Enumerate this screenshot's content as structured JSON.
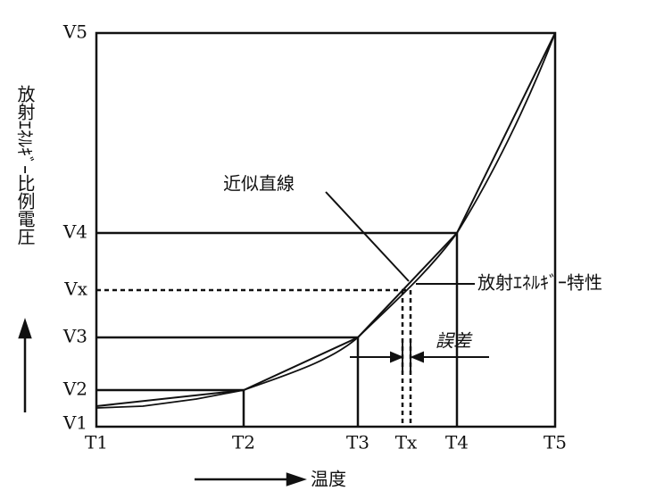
{
  "y_axis": {
    "title": "放射ｴﾈﾙｷﾞｰ比例電圧",
    "labels": [
      "V5",
      "V4",
      "Vx",
      "V3",
      "V2",
      "V1"
    ]
  },
  "x_axis": {
    "title": "温度",
    "labels": [
      "T1",
      "T2",
      "T3",
      "Tx",
      "T4",
      "T5"
    ]
  },
  "annotations": {
    "approximation": "近似直線",
    "characteristic": "放射ｴﾈﾙｷﾞｰ特性",
    "error": "誤差"
  }
}
